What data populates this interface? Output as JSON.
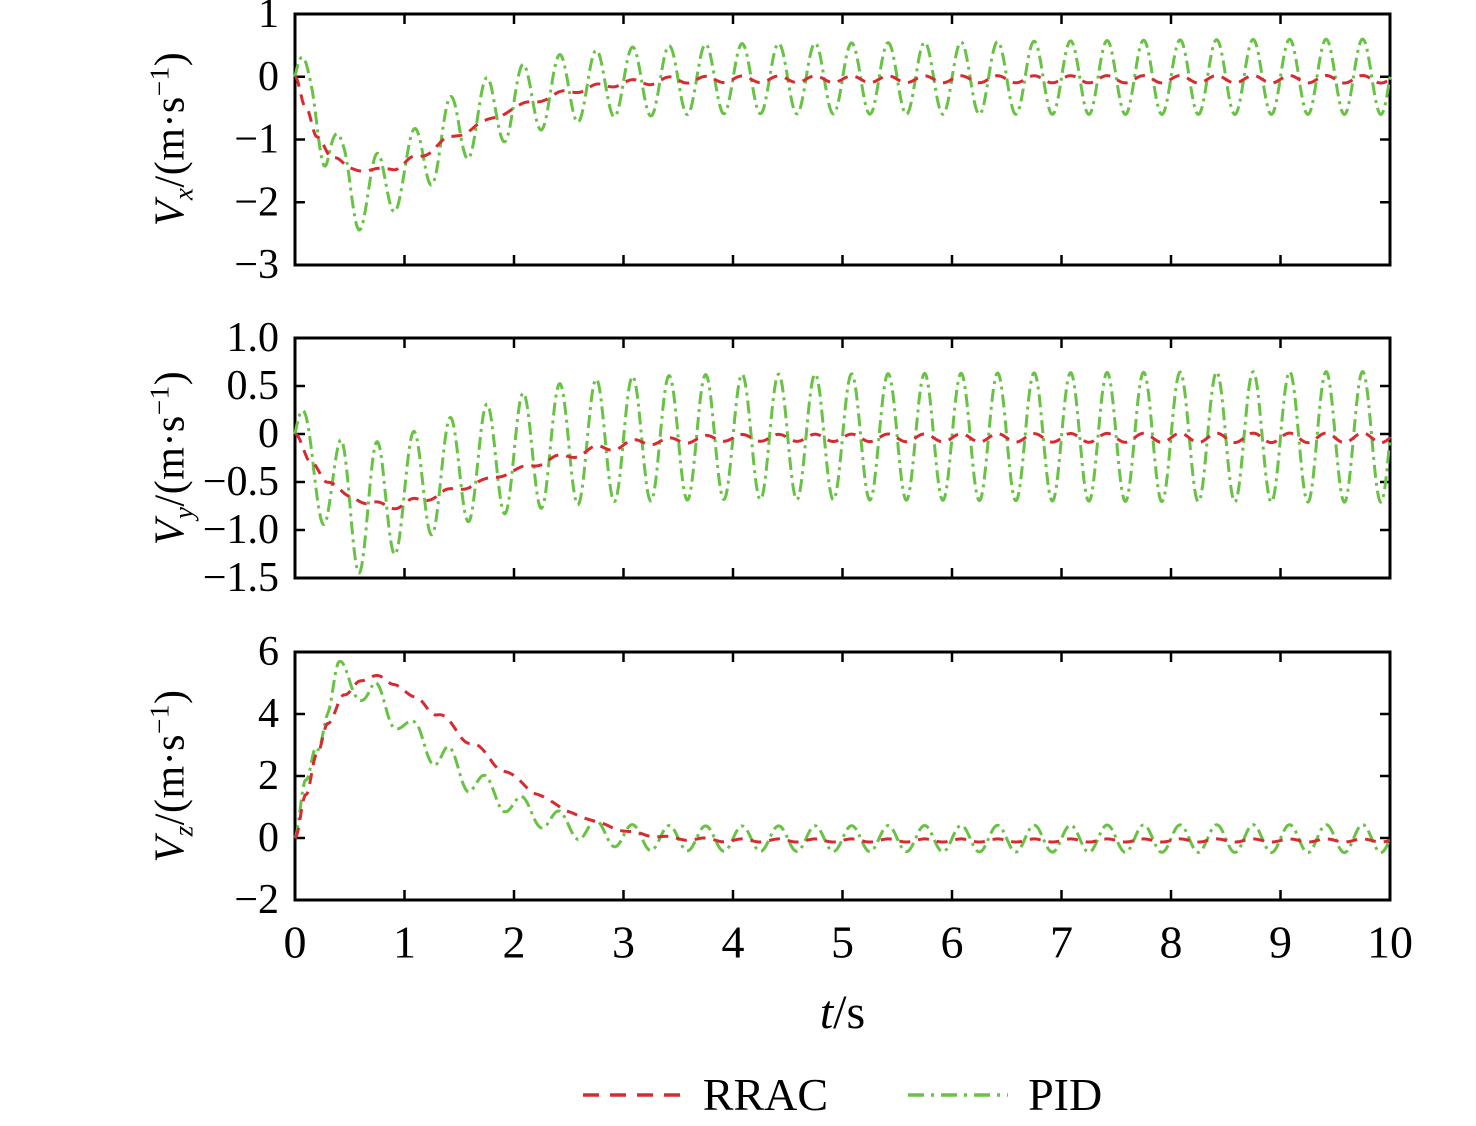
{
  "chart_data": {
    "type": "line",
    "description": "Three stacked time-series subplots comparing RRAC and PID velocity tracking responses",
    "oscillation_frequency_hz": 3,
    "x_axis": {
      "label_var": "t",
      "label_unit": "/s",
      "range": [
        0,
        10
      ],
      "tick_values": [
        0,
        1,
        2,
        3,
        4,
        5,
        6,
        7,
        8,
        9,
        10
      ],
      "tick_labels": [
        "0",
        "1",
        "2",
        "3",
        "4",
        "5",
        "6",
        "7",
        "8",
        "9",
        "10"
      ]
    },
    "legend": [
      {
        "label": "RRAC",
        "color": "#d62b31",
        "dash": "dashed"
      },
      {
        "label": "PID",
        "color": "#68c244",
        "dash": "dashdot"
      }
    ],
    "subplots": [
      {
        "id": "vx",
        "ylabel_parts": {
          "v": "V",
          "sub": "x",
          "mid": "/(m·s",
          "sup": "−1",
          "end": ")"
        },
        "ylim": [
          -3,
          1
        ],
        "ytick_values": [
          1,
          0,
          -1,
          -2,
          -3
        ],
        "ytick_labels": [
          "1",
          "0",
          "−1",
          "−2",
          "−3"
        ],
        "series": [
          {
            "name": "RRAC",
            "color": "#d62b31",
            "dash": "dashed",
            "freq_hz": 3,
            "phase": 0,
            "mean": [
              [
                0,
                0
              ],
              [
                0.1,
                -0.5
              ],
              [
                0.2,
                -0.95
              ],
              [
                0.35,
                -1.3
              ],
              [
                0.5,
                -1.45
              ],
              [
                0.7,
                -1.5
              ],
              [
                0.9,
                -1.45
              ],
              [
                1.1,
                -1.3
              ],
              [
                1.4,
                -1.0
              ],
              [
                1.7,
                -0.75
              ],
              [
                2.0,
                -0.5
              ],
              [
                2.3,
                -0.33
              ],
              [
                2.6,
                -0.2
              ],
              [
                3.0,
                -0.1
              ],
              [
                3.5,
                -0.05
              ],
              [
                4,
                -0.04
              ],
              [
                10,
                -0.04
              ]
            ],
            "osc_amp": [
              [
                0,
                0
              ],
              [
                0.5,
                0.03
              ],
              [
                2,
                0.05
              ],
              [
                10,
                0.06
              ]
            ]
          },
          {
            "name": "PID",
            "color": "#68c244",
            "dash": "dashdot",
            "freq_hz": 3,
            "phase": 0,
            "mean": [
              [
                0,
                0
              ],
              [
                0.15,
                -0.3
              ],
              [
                0.3,
                -1.0
              ],
              [
                0.45,
                -1.6
              ],
              [
                0.6,
                -1.9
              ],
              [
                0.8,
                -1.75
              ],
              [
                1.0,
                -1.5
              ],
              [
                1.2,
                -1.2
              ],
              [
                1.5,
                -0.8
              ],
              [
                1.8,
                -0.55
              ],
              [
                2.1,
                -0.35
              ],
              [
                2.5,
                -0.18
              ],
              [
                3.0,
                -0.08
              ],
              [
                4,
                -0.03
              ],
              [
                10,
                0
              ]
            ],
            "osc_amp": [
              [
                0,
                0.45
              ],
              [
                0.4,
                0.55
              ],
              [
                1,
                0.55
              ],
              [
                2,
                0.55
              ],
              [
                10,
                0.6
              ]
            ]
          }
        ]
      },
      {
        "id": "vy",
        "ylabel_parts": {
          "v": "V",
          "sub": "y",
          "mid": "/(m·s",
          "sup": "−1",
          "end": ")"
        },
        "ylim": [
          -1.5,
          1.0
        ],
        "ytick_values": [
          1.0,
          0.5,
          0,
          -0.5,
          -1.0,
          -1.5
        ],
        "ytick_labels": [
          "1.0",
          "0.5",
          "0",
          "−0.5",
          "−1.0",
          "−1.5"
        ],
        "series": [
          {
            "name": "RRAC",
            "color": "#d62b31",
            "dash": "dashed",
            "freq_hz": 3,
            "phase": 0,
            "mean": [
              [
                0,
                0
              ],
              [
                0.15,
                -0.3
              ],
              [
                0.3,
                -0.5
              ],
              [
                0.5,
                -0.65
              ],
              [
                0.7,
                -0.73
              ],
              [
                0.9,
                -0.75
              ],
              [
                1.1,
                -0.7
              ],
              [
                1.4,
                -0.6
              ],
              [
                1.7,
                -0.5
              ],
              [
                2.0,
                -0.38
              ],
              [
                2.4,
                -0.25
              ],
              [
                2.8,
                -0.15
              ],
              [
                3.2,
                -0.08
              ],
              [
                4,
                -0.04
              ],
              [
                10,
                -0.04
              ]
            ],
            "osc_amp": [
              [
                0,
                0
              ],
              [
                1,
                0.03
              ],
              [
                10,
                0.05
              ]
            ]
          },
          {
            "name": "PID",
            "color": "#68c244",
            "dash": "dashdot",
            "freq_hz": 3,
            "phase": 0,
            "mean": [
              [
                0,
                0
              ],
              [
                0.2,
                -0.35
              ],
              [
                0.4,
                -0.65
              ],
              [
                0.6,
                -0.78
              ],
              [
                0.8,
                -0.72
              ],
              [
                1.0,
                -0.6
              ],
              [
                1.3,
                -0.45
              ],
              [
                1.6,
                -0.33
              ],
              [
                2.0,
                -0.2
              ],
              [
                2.5,
                -0.1
              ],
              [
                3,
                -0.05
              ],
              [
                4,
                -0.03
              ],
              [
                10,
                -0.03
              ]
            ],
            "osc_amp": [
              [
                0,
                0.32
              ],
              [
                0.3,
                0.55
              ],
              [
                0.6,
                0.67
              ],
              [
                1,
                0.6
              ],
              [
                1.5,
                0.58
              ],
              [
                2,
                0.62
              ],
              [
                3,
                0.65
              ],
              [
                10,
                0.68
              ]
            ]
          }
        ]
      },
      {
        "id": "vz",
        "ylabel_parts": {
          "v": "V",
          "sub": "z",
          "mid": "/(m·s",
          "sup": "−1",
          "end": ")"
        },
        "ylim": [
          -2,
          6
        ],
        "ytick_values": [
          6,
          4,
          2,
          0,
          -2
        ],
        "ytick_labels": [
          "6",
          "4",
          "2",
          "0",
          "−2"
        ],
        "series": [
          {
            "name": "RRAC",
            "color": "#d62b31",
            "dash": "dashed",
            "freq_hz": 3,
            "phase": 0,
            "mean": [
              [
                0,
                0
              ],
              [
                0.1,
                1.4
              ],
              [
                0.2,
                2.7
              ],
              [
                0.3,
                3.7
              ],
              [
                0.45,
                4.6
              ],
              [
                0.6,
                5.1
              ],
              [
                0.75,
                5.2
              ],
              [
                0.9,
                5.0
              ],
              [
                1.1,
                4.5
              ],
              [
                1.3,
                4.0
              ],
              [
                1.6,
                3.1
              ],
              [
                1.9,
                2.2
              ],
              [
                2.2,
                1.45
              ],
              [
                2.5,
                0.85
              ],
              [
                2.8,
                0.45
              ],
              [
                3.1,
                0.15
              ],
              [
                3.5,
                -0.02
              ],
              [
                4,
                -0.08
              ],
              [
                10,
                -0.08
              ]
            ],
            "osc_amp": [
              [
                0,
                0
              ],
              [
                1,
                0.05
              ],
              [
                10,
                0.05
              ]
            ]
          },
          {
            "name": "PID",
            "color": "#68c244",
            "dash": "dashdot",
            "freq_hz": 3,
            "phase": 0,
            "mean": [
              [
                0,
                0
              ],
              [
                0.1,
                1.6
              ],
              [
                0.2,
                3.1
              ],
              [
                0.3,
                4.3
              ],
              [
                0.4,
                5.2
              ],
              [
                0.55,
                5.0
              ],
              [
                0.7,
                4.6
              ],
              [
                0.9,
                4.0
              ],
              [
                1.1,
                3.3
              ],
              [
                1.35,
                2.6
              ],
              [
                1.6,
                1.9
              ],
              [
                1.9,
                1.25
              ],
              [
                2.2,
                0.75
              ],
              [
                2.5,
                0.4
              ],
              [
                2.8,
                0.15
              ],
              [
                3.2,
                0.0
              ],
              [
                4,
                -0.02
              ],
              [
                10,
                -0.02
              ]
            ],
            "osc_amp": [
              [
                0,
                0.25
              ],
              [
                0.4,
                0.5
              ],
              [
                1,
                0.45
              ],
              [
                2,
                0.4
              ],
              [
                10,
                0.45
              ]
            ]
          }
        ]
      }
    ]
  }
}
